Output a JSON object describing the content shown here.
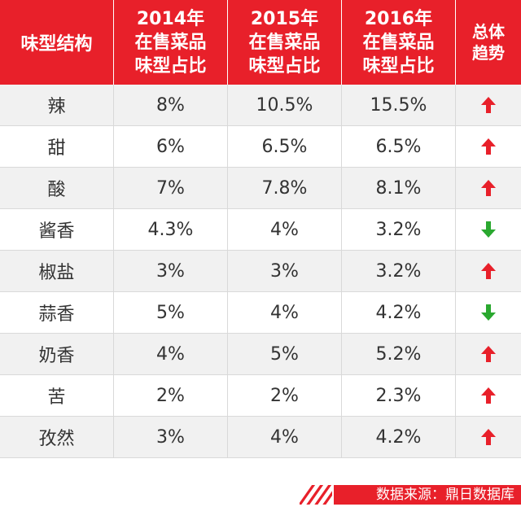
{
  "chart_data": {
    "type": "table",
    "columns": [
      {
        "lines": [
          "味型结构"
        ]
      },
      {
        "lines": [
          "2014年",
          "在售菜品",
          "味型占比"
        ]
      },
      {
        "lines": [
          "2015年",
          "在售菜品",
          "味型占比"
        ]
      },
      {
        "lines": [
          "2016年",
          "在售菜品",
          "味型占比"
        ]
      },
      {
        "lines": [
          "总体",
          "趋势"
        ]
      }
    ],
    "rows": [
      {
        "flavor": "辣",
        "y2014": "8%",
        "y2015": "10.5%",
        "y2016": "15.5%",
        "trend": "up"
      },
      {
        "flavor": "甜",
        "y2014": "6%",
        "y2015": "6.5%",
        "y2016": "6.5%",
        "trend": "up"
      },
      {
        "flavor": "酸",
        "y2014": "7%",
        "y2015": "7.8%",
        "y2016": "8.1%",
        "trend": "up"
      },
      {
        "flavor": "酱香",
        "y2014": "4.3%",
        "y2015": "4%",
        "y2016": "3.2%",
        "trend": "down"
      },
      {
        "flavor": "椒盐",
        "y2014": "3%",
        "y2015": "3%",
        "y2016": "3.2%",
        "trend": "up"
      },
      {
        "flavor": "蒜香",
        "y2014": "5%",
        "y2015": "4%",
        "y2016": "4.2%",
        "trend": "down"
      },
      {
        "flavor": "奶香",
        "y2014": "4%",
        "y2015": "5%",
        "y2016": "5.2%",
        "trend": "up"
      },
      {
        "flavor": "苦",
        "y2014": "2%",
        "y2015": "2%",
        "y2016": "2.3%",
        "trend": "up"
      },
      {
        "flavor": "孜然",
        "y2014": "3%",
        "y2015": "4%",
        "y2016": "4.2%",
        "trend": "up"
      }
    ]
  },
  "colors": {
    "header_bg": "#e8202a",
    "up_arrow": "#e8202a",
    "down_arrow": "#2aa82f",
    "row_alt": "#f1f1f1"
  },
  "footer": {
    "source": "数据来源：鼎日数据库"
  }
}
